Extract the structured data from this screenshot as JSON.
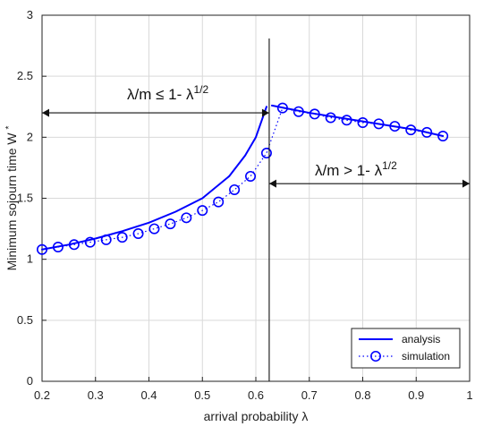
{
  "chart_data": {
    "type": "line",
    "xlabel": "arrival probability λ",
    "ylabel": "Minimum sojourn time W",
    "ylabel_superscript": "*",
    "xlim": [
      0.2,
      1.0
    ],
    "ylim": [
      0,
      3
    ],
    "xticks": [
      "0.2",
      "0.3",
      "0.4",
      "0.5",
      "0.6",
      "0.7",
      "0.8",
      "0.9",
      "1"
    ],
    "yticks": [
      "0",
      "0.5",
      "1",
      "1.5",
      "2",
      "2.5",
      "3"
    ],
    "grid": true,
    "legend_position": "bottom-right",
    "colors": {
      "series": "#0000ff",
      "text": "#222222",
      "grid": "#d9d9d9",
      "frame": "#222222"
    },
    "series": [
      {
        "name": "analysis",
        "style": "solid line",
        "segments": [
          {
            "x": [
              0.2,
              0.25,
              0.3,
              0.35,
              0.4,
              0.45,
              0.5,
              0.55,
              0.58,
              0.6,
              0.62
            ],
            "y": [
              1.08,
              1.12,
              1.17,
              1.23,
              1.3,
              1.39,
              1.5,
              1.68,
              1.85,
              2.0,
              2.25
            ]
          },
          {
            "x": [
              0.63,
              0.7,
              0.8,
              0.9,
              0.95
            ],
            "y": [
              2.26,
              2.2,
              2.13,
              2.06,
              2.01
            ]
          }
        ]
      },
      {
        "name": "simulation",
        "style": "dotted line with circle markers",
        "x": [
          0.2,
          0.23,
          0.26,
          0.29,
          0.32,
          0.35,
          0.38,
          0.41,
          0.44,
          0.47,
          0.5,
          0.53,
          0.56,
          0.59,
          0.62,
          0.65,
          0.68,
          0.71,
          0.74,
          0.77,
          0.8,
          0.83,
          0.86,
          0.89,
          0.92,
          0.95
        ],
        "y": [
          1.08,
          1.1,
          1.12,
          1.14,
          1.16,
          1.18,
          1.21,
          1.25,
          1.29,
          1.34,
          1.4,
          1.47,
          1.57,
          1.68,
          1.87,
          2.24,
          2.21,
          2.19,
          2.16,
          2.14,
          2.12,
          2.11,
          2.09,
          2.06,
          2.04,
          2.01
        ]
      }
    ],
    "annotations": [
      {
        "text": "λ/m ≤ 1- λ",
        "superscript": "1/2",
        "arrow_from": [
          0.2,
          2.2
        ],
        "arrow_to": [
          0.625,
          2.2
        ]
      },
      {
        "text": "λ/m > 1- λ",
        "superscript": "1/2",
        "arrow_from": [
          0.625,
          1.62
        ],
        "arrow_to": [
          1.0,
          1.62
        ]
      }
    ],
    "vertical_line_x": 0.625
  }
}
